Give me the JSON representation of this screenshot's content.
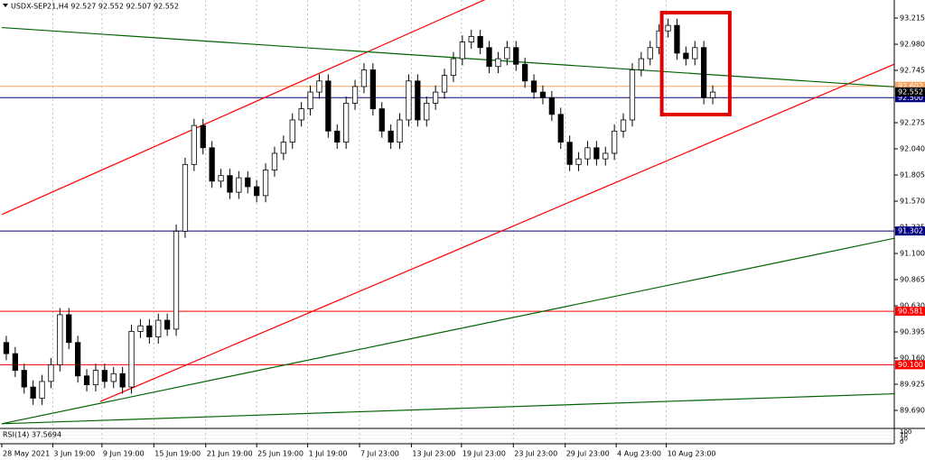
{
  "chart_data": {
    "type": "candlestick",
    "title": "USDX-SEP21,H4  92.527 92.552 92.507 92.552",
    "xlim": [
      0,
      100
    ],
    "ylim": [
      89.528,
      93.337
    ],
    "xticks": [
      {
        "value": 0,
        "label": "28 May 2021"
      },
      {
        "value": 5.7,
        "label": "3 Jun 19:00"
      },
      {
        "value": 11.2,
        "label": "9 Jun 19:00"
      },
      {
        "value": 17,
        "label": "15 Jun 19:00"
      },
      {
        "value": 22.8,
        "label": "21 Jun 19:00"
      },
      {
        "value": 28.5,
        "label": "25 Jun 19:00"
      },
      {
        "value": 34.2,
        "label": "1 Jul 19:00"
      },
      {
        "value": 40,
        "label": "7 Jul 23:00"
      },
      {
        "value": 45.8,
        "label": "13 Jul 23:00"
      },
      {
        "value": 51.4,
        "label": "19 Jul 23:00"
      },
      {
        "value": 57.2,
        "label": "23 Jul 23:00"
      },
      {
        "value": 63,
        "label": "29 Jul 23:00"
      },
      {
        "value": 68.7,
        "label": "4 Aug 23:00"
      },
      {
        "value": 74.3,
        "label": "10 Aug 23:00"
      }
    ],
    "yticks": [
      93.215,
      {
        "value": 92.98,
        "label": "92.980"
      },
      92.745,
      92.275,
      {
        "value": 92.04,
        "label": "92.040"
      },
      91.805,
      {
        "value": 91.57,
        "label": "91.570"
      },
      91.335,
      {
        "value": 91.1,
        "label": "91.100"
      },
      90.865,
      {
        "value": 90.63,
        "label": "90.630"
      },
      90.395,
      {
        "value": 90.16,
        "label": "90.160"
      },
      89.925,
      {
        "value": 89.69,
        "label": "89.690"
      }
    ],
    "grid": true,
    "color": "#000000",
    "candles": [
      [
        90.3,
        90.36,
        90.14,
        90.2
      ],
      [
        90.2,
        90.26,
        89.99,
        90.05
      ],
      [
        90.05,
        90.11,
        89.84,
        89.9
      ],
      [
        89.9,
        89.96,
        89.74,
        89.8
      ],
      [
        89.8,
        90.01,
        89.74,
        89.95
      ],
      [
        89.95,
        90.16,
        89.89,
        90.1
      ],
      [
        90.1,
        90.61,
        90.04,
        90.55
      ],
      [
        90.55,
        90.61,
        90.24,
        90.3
      ],
      [
        90.3,
        90.36,
        89.94,
        90.0
      ],
      [
        90.0,
        90.06,
        89.86,
        89.92
      ],
      [
        89.92,
        90.11,
        89.86,
        90.05
      ],
      [
        90.05,
        90.11,
        89.89,
        89.95
      ],
      [
        89.95,
        90.08,
        89.89,
        90.02
      ],
      [
        90.02,
        90.08,
        89.84,
        89.9
      ],
      [
        89.9,
        90.46,
        89.84,
        90.4
      ],
      [
        90.4,
        90.51,
        90.34,
        90.45
      ],
      [
        90.45,
        90.51,
        90.29,
        90.35
      ],
      [
        90.35,
        90.56,
        90.29,
        90.5
      ],
      [
        90.5,
        90.56,
        90.36,
        90.42
      ],
      [
        90.42,
        91.36,
        90.36,
        91.3
      ],
      [
        91.3,
        91.96,
        91.24,
        91.9
      ],
      [
        91.9,
        92.31,
        91.84,
        92.25
      ],
      [
        92.25,
        92.31,
        91.99,
        92.05
      ],
      [
        92.05,
        92.11,
        91.69,
        91.75
      ],
      [
        91.75,
        91.86,
        91.69,
        91.8
      ],
      [
        91.8,
        91.86,
        91.59,
        91.65
      ],
      [
        91.65,
        91.84,
        91.59,
        91.78
      ],
      [
        91.78,
        91.84,
        91.64,
        91.7
      ],
      [
        91.7,
        91.76,
        91.56,
        91.62
      ],
      [
        91.62,
        91.91,
        91.56,
        91.85
      ],
      [
        91.85,
        92.06,
        91.79,
        92.0
      ],
      [
        92.0,
        92.16,
        91.94,
        92.1
      ],
      [
        92.1,
        92.36,
        92.04,
        92.3
      ],
      [
        92.3,
        92.46,
        92.24,
        92.4
      ],
      [
        92.4,
        92.61,
        92.34,
        92.55
      ],
      [
        92.55,
        92.71,
        92.49,
        92.65
      ],
      [
        92.65,
        92.71,
        92.14,
        92.2
      ],
      [
        92.2,
        92.26,
        92.04,
        92.1
      ],
      [
        92.1,
        92.51,
        92.04,
        92.45
      ],
      [
        92.45,
        92.66,
        92.39,
        92.6
      ],
      [
        92.6,
        92.81,
        92.54,
        92.75
      ],
      [
        92.75,
        92.81,
        92.34,
        92.4
      ],
      [
        92.4,
        92.46,
        92.14,
        92.2
      ],
      [
        92.2,
        92.26,
        92.04,
        92.1
      ],
      [
        92.1,
        92.36,
        92.04,
        92.3
      ],
      [
        92.3,
        92.71,
        92.24,
        92.65
      ],
      [
        92.65,
        92.71,
        92.24,
        92.3
      ],
      [
        92.3,
        92.51,
        92.24,
        92.45
      ],
      [
        92.45,
        92.61,
        92.39,
        92.55
      ],
      [
        92.55,
        92.76,
        92.49,
        92.7
      ],
      [
        92.7,
        92.91,
        92.64,
        92.85
      ],
      [
        92.85,
        93.06,
        92.79,
        93.0
      ],
      [
        93.0,
        93.11,
        92.94,
        93.05
      ],
      [
        93.05,
        93.11,
        92.89,
        92.95
      ],
      [
        92.95,
        93.01,
        92.72,
        92.78
      ],
      [
        92.78,
        92.91,
        92.72,
        92.85
      ],
      [
        92.85,
        93.01,
        92.79,
        92.95
      ],
      [
        92.95,
        93.01,
        92.74,
        92.8
      ],
      [
        92.8,
        92.86,
        92.59,
        92.65
      ],
      [
        92.65,
        92.71,
        92.49,
        92.55
      ],
      [
        92.55,
        92.61,
        92.44,
        92.5
      ],
      [
        92.5,
        92.56,
        92.29,
        92.35
      ],
      [
        92.35,
        92.41,
        92.04,
        92.1
      ],
      [
        92.1,
        92.16,
        91.84,
        91.9
      ],
      [
        91.9,
        92.01,
        91.84,
        91.95
      ],
      [
        91.95,
        92.11,
        91.89,
        92.05
      ],
      [
        92.05,
        92.11,
        91.89,
        91.95
      ],
      [
        91.95,
        92.06,
        91.89,
        92.0
      ],
      [
        92.0,
        92.26,
        91.94,
        92.2
      ],
      [
        92.2,
        92.36,
        92.14,
        92.3
      ],
      [
        92.3,
        92.81,
        92.24,
        92.75
      ],
      [
        92.75,
        92.91,
        92.69,
        92.85
      ],
      [
        92.85,
        93.01,
        92.79,
        92.95
      ],
      [
        92.95,
        93.16,
        92.89,
        93.1
      ],
      [
        93.1,
        93.21,
        93.04,
        93.15
      ],
      [
        93.15,
        93.21,
        92.84,
        92.9
      ],
      [
        92.9,
        92.96,
        92.79,
        92.85
      ],
      [
        92.85,
        93.01,
        92.79,
        92.95
      ],
      [
        92.95,
        93.01,
        92.44,
        92.5
      ],
      [
        92.5,
        92.61,
        92.44,
        92.55
      ]
    ],
    "levels": [
      {
        "price": 92.602,
        "color": "#f4a460"
      },
      {
        "price": 92.5,
        "label": "92.500",
        "color": "#00007f"
      },
      {
        "price": 91.302,
        "color": "#00007f"
      },
      {
        "price": 90.581,
        "color": "#ff0000"
      },
      {
        "price": 90.1,
        "label": "90.100",
        "color": "#ff0000"
      }
    ],
    "current_price": 92.552,
    "trendlines": [
      {
        "color": "#ff0000",
        "points": [
          [
            0,
            91.45
          ],
          [
            54,
            93.38
          ]
        ]
      },
      {
        "color": "#ff0000",
        "points": [
          [
            11,
            89.77
          ],
          [
            103,
            92.91
          ]
        ]
      },
      {
        "color": "#006400",
        "points": [
          [
            0,
            93.13
          ],
          [
            103,
            92.58
          ]
        ]
      },
      {
        "color": "#006400",
        "points": [
          [
            0,
            89.57
          ],
          [
            103,
            91.29
          ]
        ]
      },
      {
        "color": "#006400",
        "points": [
          [
            0,
            89.57
          ],
          [
            100,
            89.84
          ]
        ]
      }
    ],
    "highlight_box": {
      "color": "#e00000",
      "x": [
        73.8,
        81.4
      ],
      "price": [
        92.348,
        93.264
      ]
    },
    "rsi_label": "RSI(14) 37.5694",
    "rsi_ylim": [
      0,
      100
    ],
    "rsi_ticks": [
      100,
      70,
      30,
      0
    ]
  }
}
